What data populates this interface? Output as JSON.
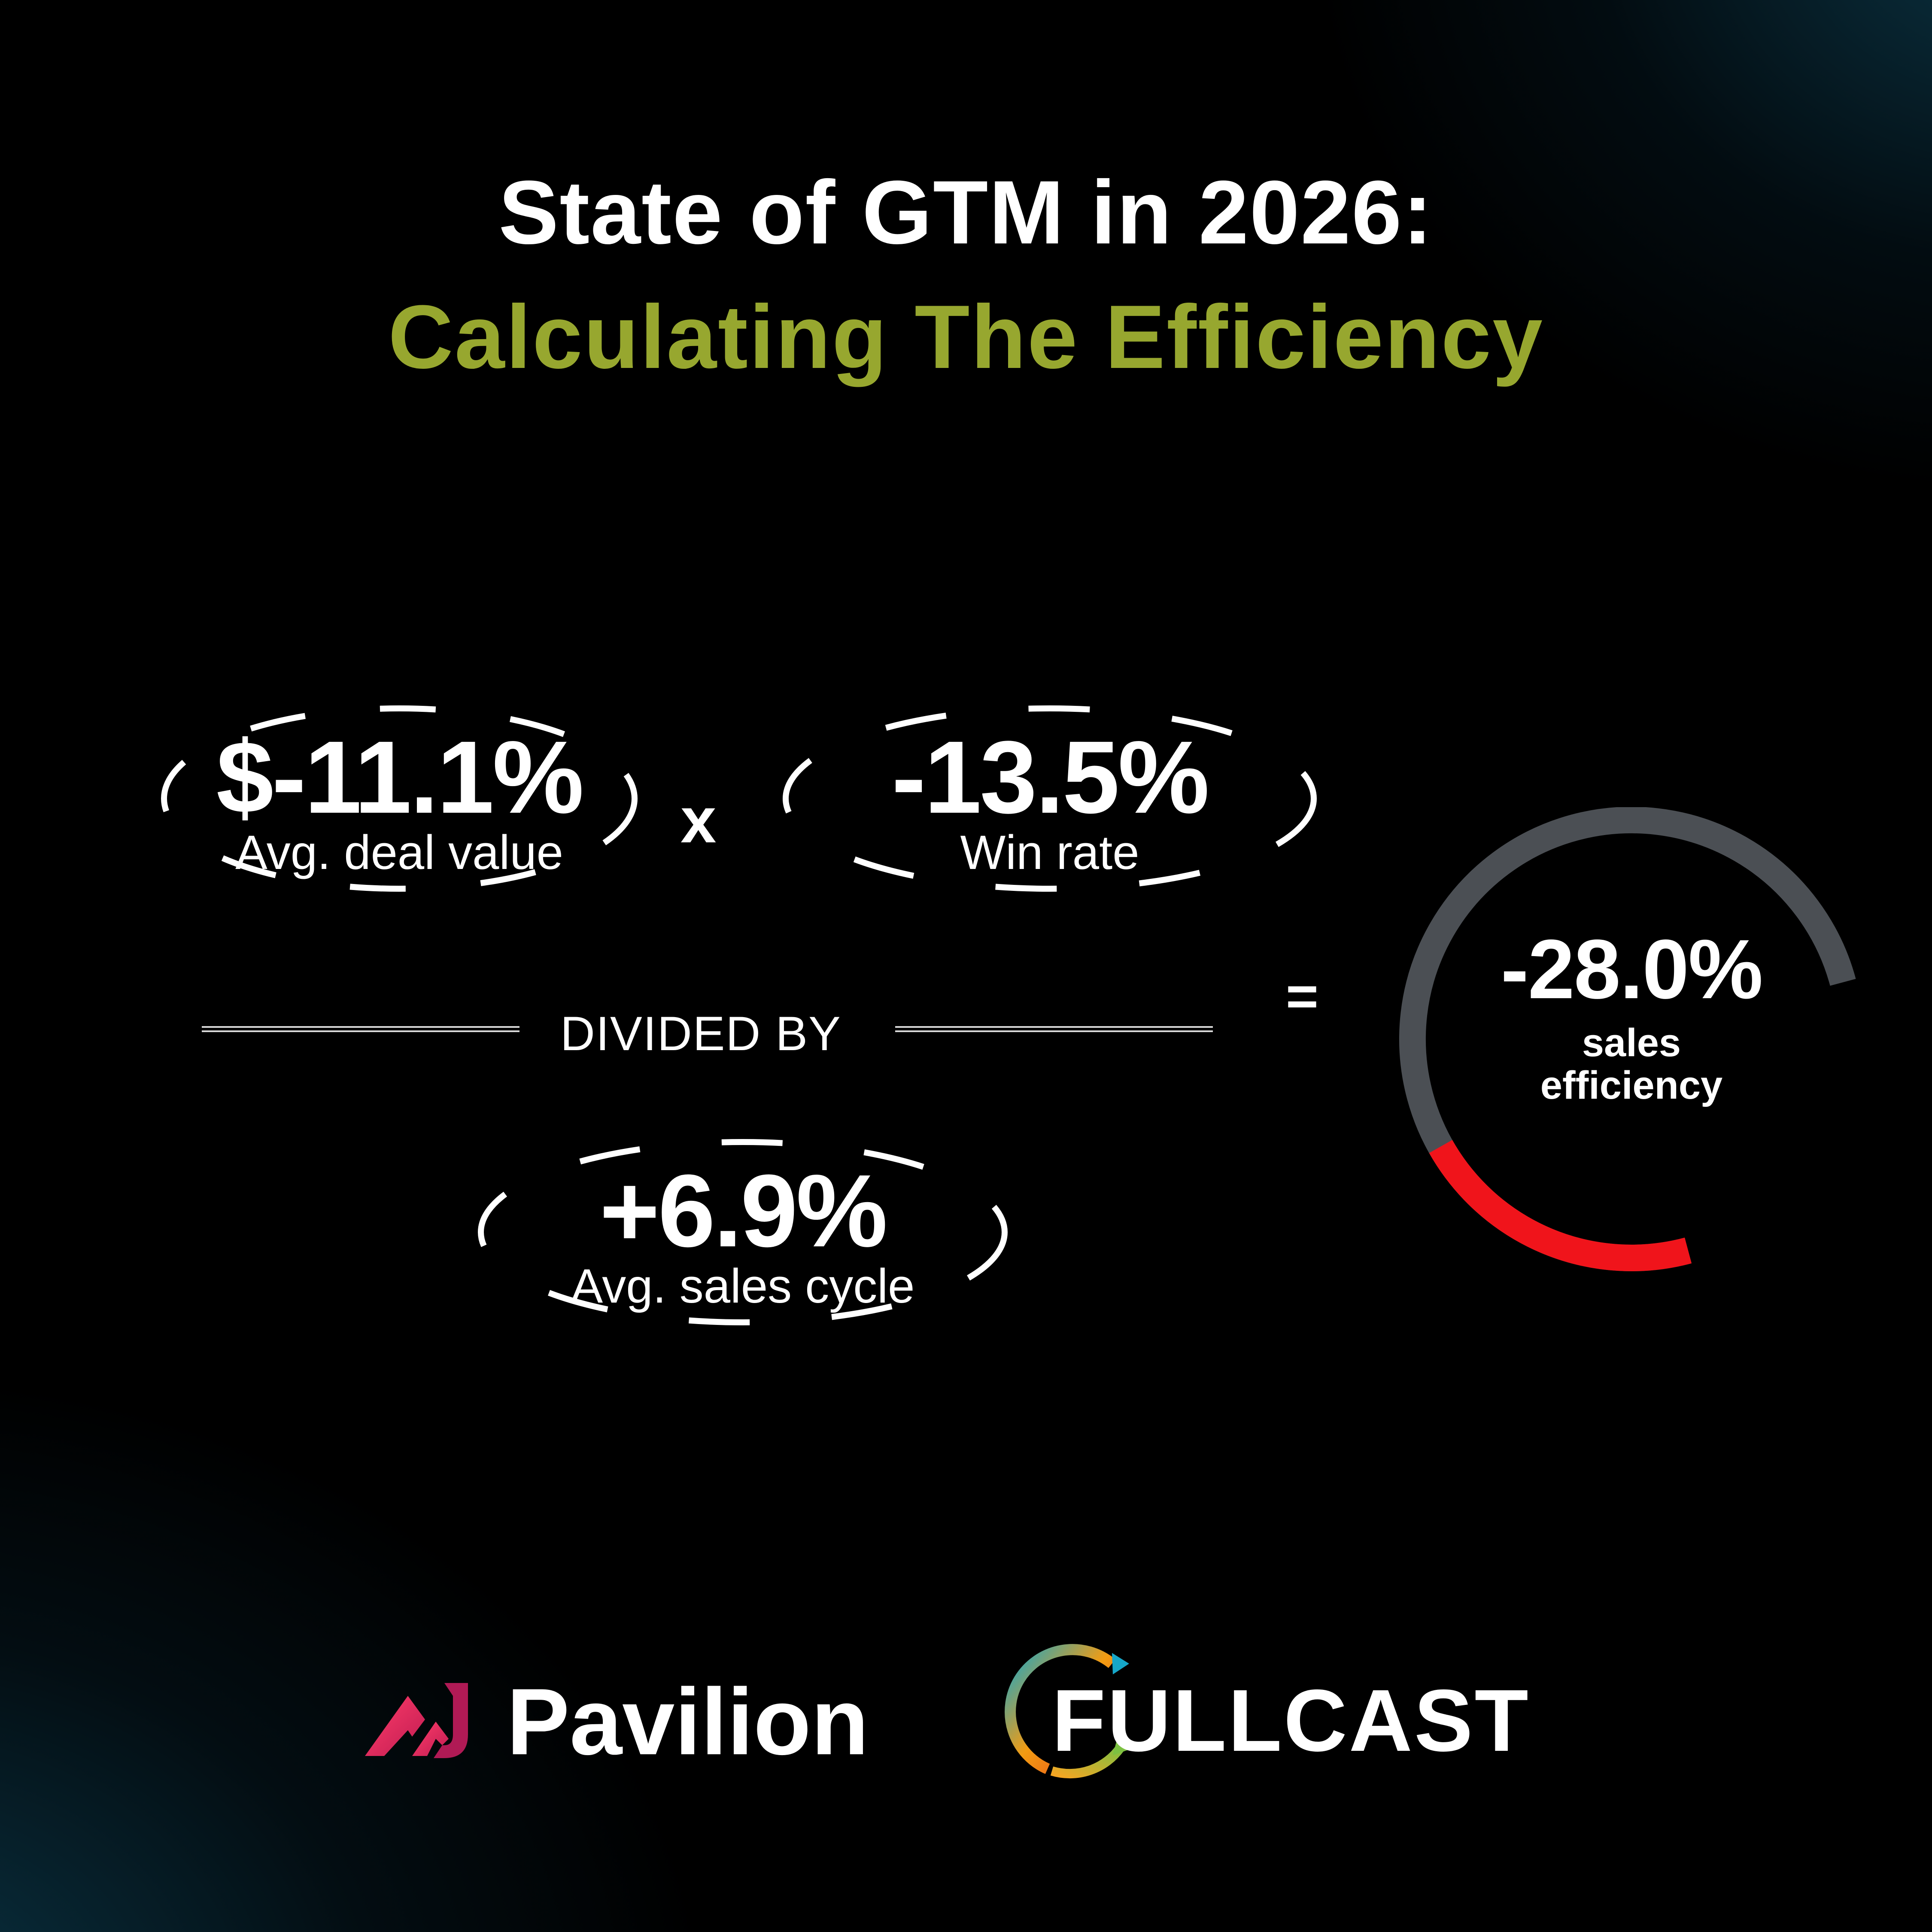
{
  "title": {
    "line1": "State of GTM in 2026:",
    "line2": "Calculating The Efficiency"
  },
  "equation": {
    "deal_value": {
      "value": "$-11.1%",
      "label": "Avg. deal value"
    },
    "multiply_symbol": "x",
    "win_rate": {
      "value": "-13.5%",
      "label": "Win rate"
    },
    "divider_label": "DIVIDED BY",
    "sales_cycle": {
      "value": "+6.9%",
      "label": "Avg. sales cycle"
    },
    "equals_symbol": "="
  },
  "result": {
    "value": "-28.0%",
    "label_line1": "sales",
    "label_line2": "efficiency",
    "negative_fraction_of_gauge": 0.28
  },
  "logos": {
    "pavilion": "Pavilion",
    "fullcast": "FULLCAST"
  },
  "colors": {
    "accent_green": "#97a72f",
    "gauge_track": "#4b4f54",
    "gauge_negative": "#f0141b",
    "pavilion_pink": "#e8285a",
    "text": "#ffffff"
  }
}
